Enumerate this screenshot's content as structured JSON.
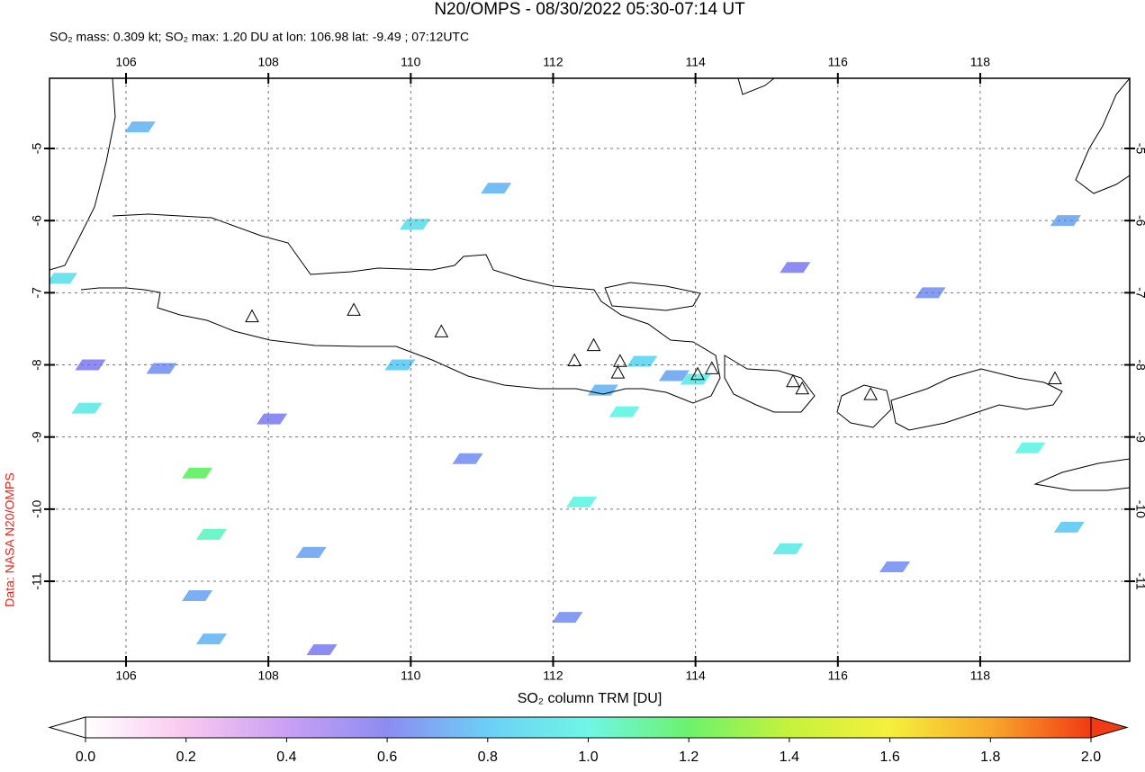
{
  "chart_data": {
    "type": "map",
    "title": "N20/OMPS - 08/30/2022 05:30-07:14 UT",
    "subtitle": "SO₂ mass: 0.309 kt; SO₂ max: 1.20 DU at lon: 106.98 lat: -9.49 ; 07:12UTC",
    "credit": "Data: NASA N20/OMPS",
    "xlim": [
      104.925,
      120.1
    ],
    "ylim": [
      -12.11,
      -4.027
    ],
    "xticks": [
      106,
      108,
      110,
      112,
      114,
      116,
      118
    ],
    "yticks": [
      -5,
      -6,
      -7,
      -8,
      -9,
      -10,
      -11
    ],
    "grid": true,
    "colorbar": {
      "label": "SO₂ column TRM [DU]",
      "lim": [
        0,
        2
      ],
      "ticks": [
        {
          "value": 0,
          "label": "0.0"
        },
        0.2,
        0.4,
        0.6,
        0.8,
        {
          "value": 1,
          "label": "1.0"
        },
        1.2,
        1.4,
        1.6,
        1.8,
        {
          "value": 2,
          "label": "2.0"
        }
      ],
      "colors": [
        "#ffffff",
        "#f9c8ef",
        "#c9a0f4",
        "#8c8cf2",
        "#6ccff6",
        "#6ff6e6",
        "#6cf26c",
        "#c6f23c",
        "#f6f03c",
        "#f8a82c",
        "#f23a14"
      ]
    },
    "volcanoes": {
      "lon": [
        107.77,
        109.2,
        110.43,
        112.3,
        112.57,
        112.94,
        112.91,
        114.03,
        114.23,
        115.37,
        115.5,
        116.46,
        119.05
      ],
      "lat": [
        -7.34,
        -7.25,
        -7.55,
        -7.95,
        -7.74,
        -7.96,
        -8.12,
        -8.14,
        -8.06,
        -8.24,
        -8.34,
        -8.42,
        -8.2
      ]
    },
    "pixels": {
      "lon": [
        107.0,
        107.2,
        110.06,
        105.45,
        105.1,
        113.0,
        112.4,
        114.0,
        115.3,
        106.2,
        111.2,
        109.85,
        107.2,
        108.6,
        110.8,
        112.2,
        117.3,
        115.4,
        106.5,
        105.5,
        116.8,
        118.7,
        119.25,
        119.2,
        108.75,
        107.0,
        113.7,
        112.7,
        113.25,
        108.05
      ],
      "lat": [
        -9.5,
        -10.35,
        -6.05,
        -8.6,
        -6.8,
        -8.65,
        -9.9,
        -8.2,
        -10.55,
        -4.7,
        -5.55,
        -8.0,
        -11.8,
        -10.6,
        -9.3,
        -11.5,
        -7.0,
        -6.65,
        -8.05,
        -8.0,
        -10.8,
        -9.15,
        -10.25,
        -6.0,
        -11.95,
        -11.2,
        -8.15,
        -8.35,
        -7.95,
        -8.75
      ],
      "values": [
        1.2,
        1.05,
        0.9,
        0.95,
        0.9,
        1.0,
        1.0,
        0.95,
        0.95,
        0.75,
        0.75,
        0.8,
        0.75,
        0.7,
        0.65,
        0.65,
        0.65,
        0.6,
        0.65,
        0.6,
        0.65,
        1.0,
        0.8,
        0.7,
        0.6,
        0.7,
        0.7,
        0.75,
        0.85,
        0.6
      ]
    }
  }
}
